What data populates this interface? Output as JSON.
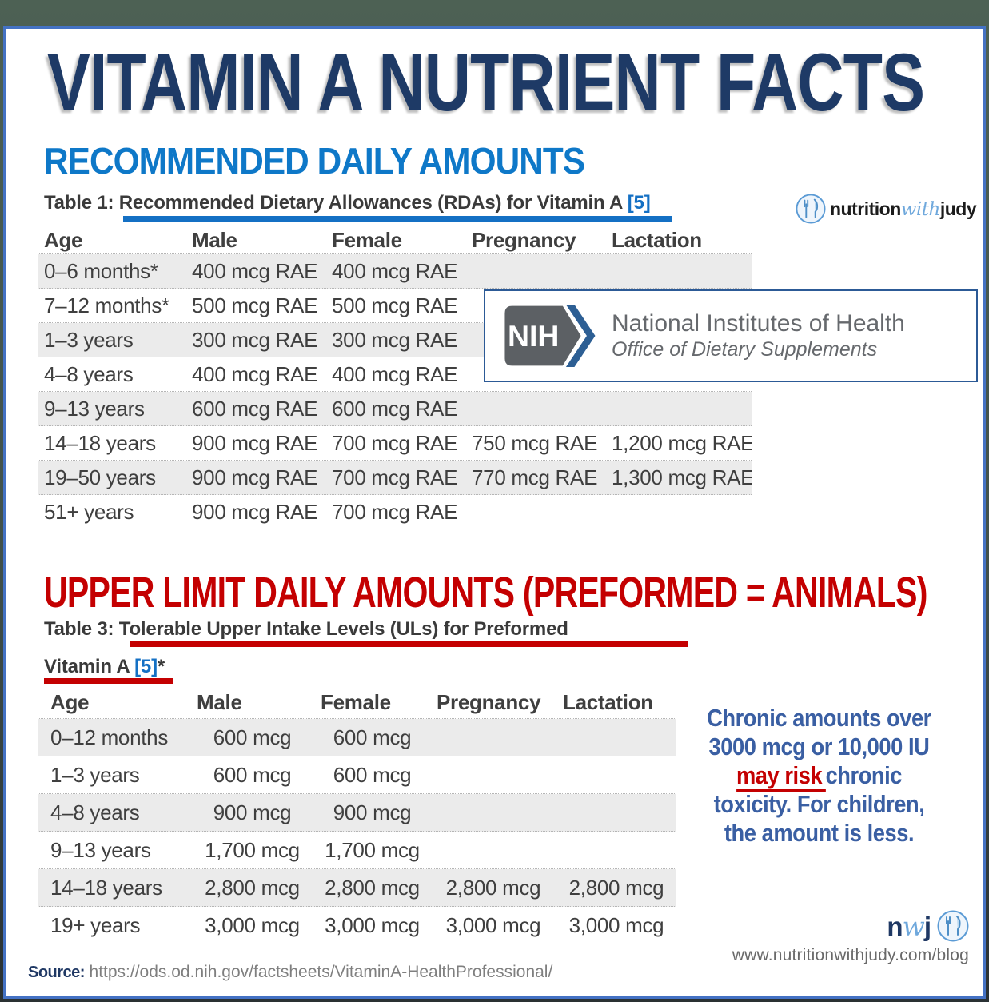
{
  "title": "VITAMIN A NUTRIENT FACTS",
  "section1": {
    "heading": "RECOMMENDED DAILY AMOUNTS",
    "caption": {
      "prefix": "Table 1: ",
      "text": "Recommended Dietary Allowances (RDAs) for Vitamin A ",
      "ref": "[5]"
    },
    "table": {
      "headers": [
        "Age",
        "Male",
        "Female",
        "Pregnancy",
        "Lactation"
      ],
      "rows": [
        [
          "0–6 months*",
          "400 mcg RAE",
          "400 mcg RAE",
          "",
          ""
        ],
        [
          "7–12 months*",
          "500 mcg RAE",
          "500 mcg RAE",
          "",
          ""
        ],
        [
          "1–3 years",
          "300 mcg RAE",
          "300 mcg RAE",
          "",
          ""
        ],
        [
          "4–8 years",
          "400 mcg RAE",
          "400 mcg RAE",
          "",
          ""
        ],
        [
          "9–13 years",
          "600 mcg RAE",
          "600 mcg RAE",
          "",
          ""
        ],
        [
          "14–18 years",
          "900 mcg RAE",
          "700 mcg RAE",
          "750 mcg RAE",
          "1,200 mcg RAE"
        ],
        [
          "19–50 years",
          "900 mcg RAE",
          "700 mcg RAE",
          "770 mcg RAE",
          "1,300 mcg RAE"
        ],
        [
          "51+ years",
          "900 mcg RAE",
          "700 mcg RAE",
          "",
          ""
        ]
      ]
    }
  },
  "nih": {
    "acronym": "NIH",
    "name": "National Institutes of Health",
    "office": "Office of Dietary Supplements"
  },
  "brand": {
    "part1": "nutrition",
    "part2": "with",
    "part3": "judy"
  },
  "section2": {
    "heading": "UPPER LIMIT DAILY AMOUNTS (PREFORMED = ANIMALS)",
    "caption_line1_prefix": "Table 3: ",
    "caption_line1_text": "Tolerable Upper Intake Levels (ULs) for Preformed",
    "caption_line2_text": "Vitamin A ",
    "caption_line2_ref": "[5]",
    "caption_line2_suffix": "*",
    "table": {
      "headers": [
        "Age",
        "Male",
        "Female",
        "Pregnancy",
        "Lactation"
      ],
      "rows": [
        [
          "0–12 months",
          "600 mcg",
          "600 mcg",
          "",
          ""
        ],
        [
          "1–3 years",
          "600 mcg",
          "600 mcg",
          "",
          ""
        ],
        [
          "4–8 years",
          "900 mcg",
          "900 mcg",
          "",
          ""
        ],
        [
          "9–13 years",
          "1,700 mcg",
          "1,700 mcg",
          "",
          ""
        ],
        [
          "14–18 years",
          "2,800 mcg",
          "2,800 mcg",
          "2,800 mcg",
          "2,800 mcg"
        ],
        [
          "19+ years",
          "3,000 mcg",
          "3,000 mcg",
          "3,000 mcg",
          "3,000 mcg"
        ]
      ]
    }
  },
  "note": {
    "line1": "Chronic amounts over",
    "line2": "3000 mcg or 10,000 IU",
    "line3_red": "may risk",
    "line3_rest": "chronic",
    "line4": "toxicity. For children,",
    "line5": "the amount is less."
  },
  "footer": {
    "source_label": "Source:",
    "source_url": "https://ods.od.nih.gov/factsheets/VitaminA-HealthProfessional/",
    "brand_n": "n",
    "brand_w": "w",
    "brand_j": "j",
    "website": "www.nutritionwithjudy.com/blog"
  },
  "colors": {
    "navy": "#1e3a66",
    "heading_blue": "#0e78c8",
    "heading_red": "#c40001",
    "note_blue": "#3a5fa3",
    "row_shade": "#ebebeb",
    "page_border_blue": "#4472c4",
    "brand_light_blue": "#6fa8dc"
  }
}
